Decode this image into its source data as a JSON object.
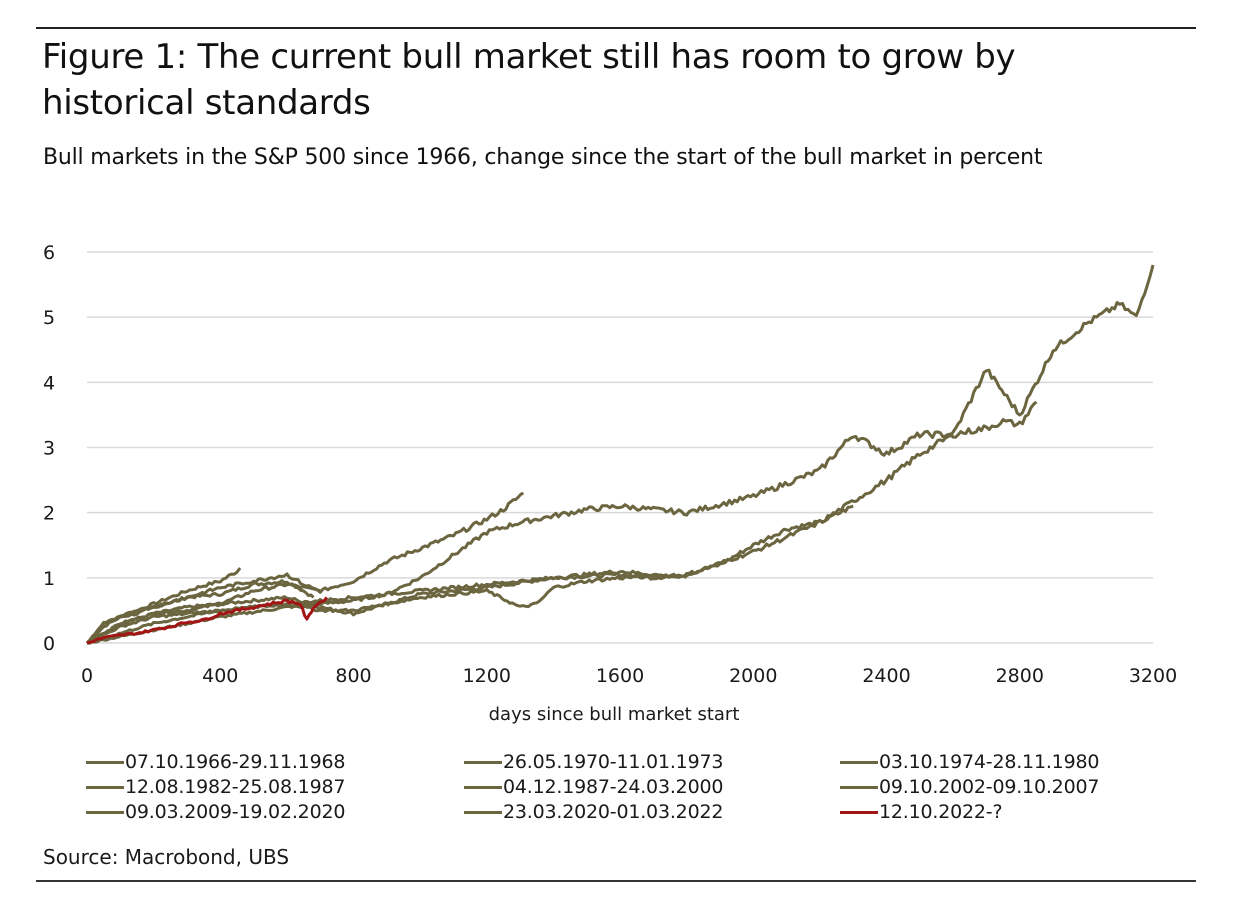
{
  "figure": {
    "title": "Figure 1: The current bull market still has room to grow by historical standards",
    "subtitle": "Bull markets in the S&P 500 since 1966, change since the start of the bull market in percent",
    "source": "Source: Macrobond, UBS"
  },
  "colors": {
    "historical": "#6b6540",
    "current": "#a31515",
    "grid": "#d9d9d9"
  },
  "chart_data": {
    "type": "line",
    "title": "Figure 1: The current bull market still has room to grow by historical standards",
    "subtitle": "Bull markets in the S&P 500 since 1966, change since the start of the bull market in percent",
    "xlabel": "days since bull market start",
    "ylabel": "",
    "xlim": [
      0,
      3200
    ],
    "ylim": [
      0,
      6
    ],
    "xticks": [
      "0",
      "400",
      "800",
      "1200",
      "1600",
      "2000",
      "2400",
      "2800",
      "3200"
    ],
    "yticks": [
      "0",
      "1",
      "2",
      "3",
      "4",
      "5",
      "6"
    ],
    "grid": "horizontal",
    "legend_position": "bottom",
    "series": [
      {
        "name": "07.10.1966-29.11.1968",
        "color": "#6b6540",
        "x": [
          0,
          50,
          100,
          150,
          200,
          250,
          300,
          350,
          400,
          450,
          460
        ],
        "y": [
          0,
          0.25,
          0.4,
          0.5,
          0.6,
          0.7,
          0.8,
          0.88,
          0.95,
          1.1,
          1.15
        ]
      },
      {
        "name": "26.05.1970-11.01.1973",
        "color": "#6b6540",
        "x": [
          0,
          50,
          100,
          150,
          200,
          300,
          400,
          500,
          600,
          650,
          680
        ],
        "y": [
          0,
          0.3,
          0.4,
          0.45,
          0.55,
          0.7,
          0.75,
          0.9,
          0.95,
          0.8,
          0.7
        ]
      },
      {
        "name": "03.10.1974-28.11.1980",
        "color": "#6b6540",
        "x": [
          0,
          100,
          200,
          300,
          400,
          500,
          600,
          700,
          800,
          900,
          1000,
          1200,
          1400,
          1600,
          1700,
          1800,
          1900,
          2000,
          2100,
          2200,
          2300
        ],
        "y": [
          0,
          0.3,
          0.45,
          0.55,
          0.6,
          0.65,
          0.7,
          0.55,
          0.45,
          0.6,
          0.75,
          0.85,
          1.0,
          1.05,
          1.0,
          1.05,
          1.2,
          1.5,
          1.75,
          1.85,
          2.1
        ]
      },
      {
        "name": "12.08.1982-25.08.1987",
        "color": "#6b6540",
        "x": [
          0,
          100,
          200,
          300,
          400,
          500,
          600,
          650,
          700,
          800,
          900,
          1000,
          1100,
          1200,
          1250,
          1310
        ],
        "y": [
          0,
          0.3,
          0.45,
          0.5,
          0.6,
          0.8,
          0.9,
          0.85,
          0.8,
          0.95,
          1.25,
          1.45,
          1.65,
          1.9,
          2.05,
          2.3
        ]
      },
      {
        "name": "04.12.1987-24.03.2000",
        "color": "#6b6540",
        "x": [
          0,
          200,
          400,
          600,
          700,
          800,
          900,
          1000,
          1200,
          1300,
          1400,
          1500,
          1600,
          1700,
          1800,
          2000,
          2200,
          2300,
          2400,
          2500,
          2600,
          2700,
          2800,
          2900,
          3000,
          3100,
          3150,
          3200
        ],
        "y": [
          0,
          0.2,
          0.4,
          0.55,
          0.6,
          0.65,
          0.75,
          1.0,
          1.7,
          1.85,
          1.95,
          2.05,
          2.1,
          2.05,
          2.0,
          2.25,
          2.65,
          3.2,
          2.9,
          3.2,
          3.2,
          4.2,
          3.5,
          4.5,
          4.9,
          5.2,
          5.0,
          5.8
        ]
      },
      {
        "name": "09.10.2002-09.10.2007",
        "color": "#6b6540",
        "x": [
          0,
          100,
          200,
          300,
          400,
          500,
          600,
          700,
          800,
          900,
          1000,
          1100,
          1200,
          1300,
          1400,
          1500,
          1600,
          1700,
          1800
        ],
        "y": [
          0,
          0.25,
          0.4,
          0.45,
          0.5,
          0.55,
          0.6,
          0.65,
          0.7,
          0.75,
          0.8,
          0.85,
          0.9,
          0.95,
          1.0,
          1.05,
          1.1,
          1.05,
          1.0
        ]
      },
      {
        "name": "09.03.2009-19.02.2020",
        "color": "#6b6540",
        "x": [
          0,
          200,
          400,
          600,
          700,
          800,
          1000,
          1200,
          1300,
          1350,
          1400,
          1500,
          1600,
          1800,
          2000,
          2200,
          2400,
          2500,
          2600,
          2700,
          2750,
          2800,
          2850
        ],
        "y": [
          0,
          0.3,
          0.5,
          0.6,
          0.5,
          0.5,
          0.7,
          0.8,
          0.55,
          0.6,
          0.85,
          0.95,
          1.0,
          1.05,
          1.4,
          1.85,
          2.5,
          2.9,
          3.2,
          3.3,
          3.4,
          3.35,
          3.7
        ]
      },
      {
        "name": "23.03.2020-01.03.2022",
        "color": "#6b6540",
        "x": [
          0,
          50,
          100,
          150,
          200,
          300,
          400,
          500,
          600,
          650,
          700
        ],
        "y": [
          0,
          0.3,
          0.4,
          0.5,
          0.55,
          0.7,
          0.85,
          0.95,
          1.05,
          0.9,
          0.8
        ]
      },
      {
        "name": "12.10.2022-?",
        "color": "#a31515",
        "x": [
          0,
          50,
          100,
          150,
          200,
          250,
          300,
          350,
          400,
          450,
          500,
          550,
          600,
          640,
          660,
          680,
          720
        ],
        "y": [
          0,
          0.08,
          0.12,
          0.15,
          0.2,
          0.25,
          0.32,
          0.35,
          0.45,
          0.5,
          0.55,
          0.6,
          0.65,
          0.6,
          0.35,
          0.55,
          0.7
        ]
      }
    ]
  }
}
